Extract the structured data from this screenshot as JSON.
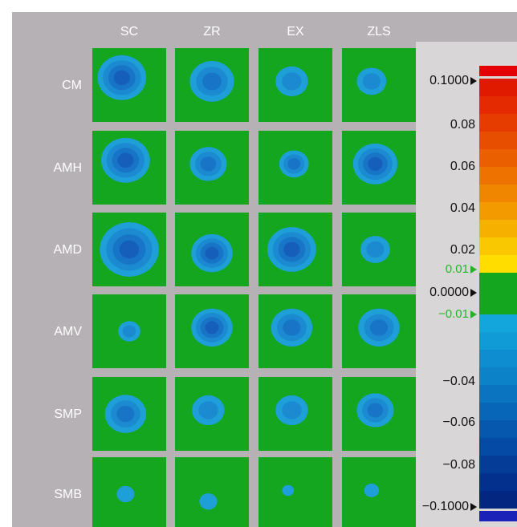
{
  "columns": [
    "SC",
    "ZR",
    "EX",
    "ZLS"
  ],
  "rows": [
    "CM",
    "AMH",
    "AMD",
    "AMV",
    "SMP",
    "SMB"
  ],
  "scale_labels": [
    "0.1000",
    "0.08",
    "0.06",
    "0.04",
    "0.02",
    "0.01",
    "0.0000",
    "−0.01",
    "−0.04",
    "−0.06",
    "−0.08",
    "−0.1000"
  ]
}
